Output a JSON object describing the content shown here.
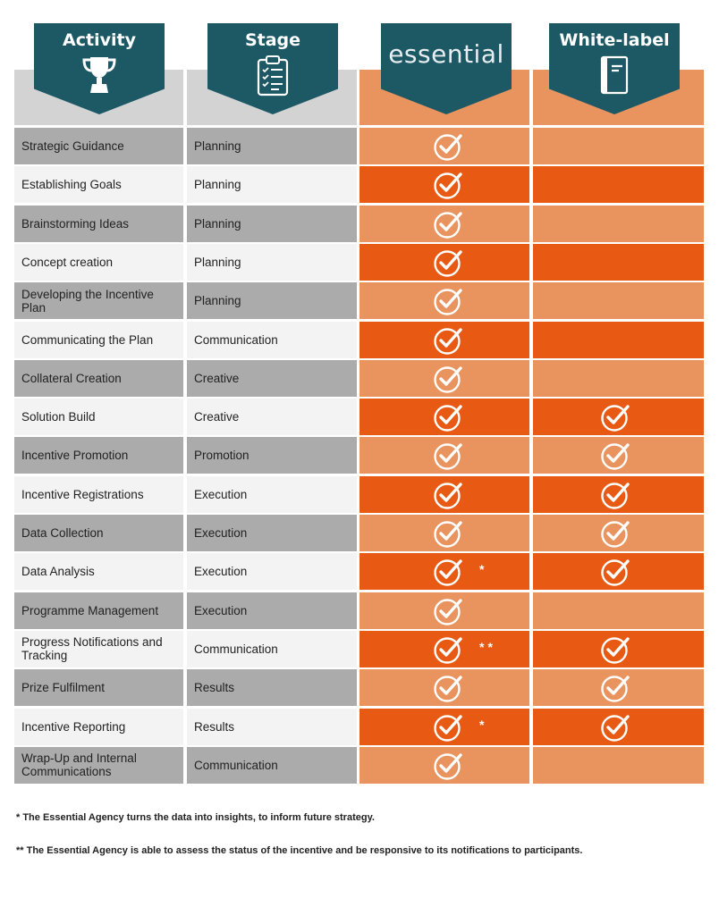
{
  "headers": {
    "activity": "Activity",
    "stage": "Stage",
    "essential": "essential",
    "white_label": "White-label"
  },
  "colors": {
    "banner": "#1d5865",
    "orange_dark": "#e85a14",
    "orange_light": "#e9935f",
    "grey_dark": "#ababab",
    "grey_light": "#f3f3f3"
  },
  "icons": {
    "activity": "trophy-icon",
    "stage": "clipboard-checklist-icon",
    "white_label": "notebook-icon",
    "check": "check-circle-icon"
  },
  "rows": [
    {
      "activity": "Strategic Guidance",
      "stage": "Planning",
      "essential": true,
      "essential_note": "",
      "white_label": false
    },
    {
      "activity": "Establishing Goals",
      "stage": "Planning",
      "essential": true,
      "essential_note": "",
      "white_label": false
    },
    {
      "activity": "Brainstorming Ideas",
      "stage": "Planning",
      "essential": true,
      "essential_note": "",
      "white_label": false
    },
    {
      "activity": "Concept creation",
      "stage": "Planning",
      "essential": true,
      "essential_note": "",
      "white_label": false
    },
    {
      "activity": "Developing the Incentive Plan",
      "stage": "Planning",
      "essential": true,
      "essential_note": "",
      "white_label": false
    },
    {
      "activity": "Communicating the Plan",
      "stage": "Communication",
      "essential": true,
      "essential_note": "",
      "white_label": false
    },
    {
      "activity": "Collateral Creation",
      "stage": "Creative",
      "essential": true,
      "essential_note": "",
      "white_label": false
    },
    {
      "activity": "Solution Build",
      "stage": "Creative",
      "essential": true,
      "essential_note": "",
      "white_label": true
    },
    {
      "activity": "Incentive Promotion",
      "stage": "Promotion",
      "essential": true,
      "essential_note": "",
      "white_label": true
    },
    {
      "activity": "Incentive Registrations",
      "stage": "Execution",
      "essential": true,
      "essential_note": "",
      "white_label": true
    },
    {
      "activity": "Data Collection",
      "stage": "Execution",
      "essential": true,
      "essential_note": "",
      "white_label": true
    },
    {
      "activity": "Data Analysis",
      "stage": "Execution",
      "essential": true,
      "essential_note": "*",
      "white_label": true
    },
    {
      "activity": "Programme Management",
      "stage": "Execution",
      "essential": true,
      "essential_note": "",
      "white_label": false
    },
    {
      "activity": "Progress Notifications and Tracking",
      "stage": "Communication",
      "essential": true,
      "essential_note": "**",
      "white_label": true
    },
    {
      "activity": "Prize Fulfilment",
      "stage": "Results",
      "essential": true,
      "essential_note": "",
      "white_label": true
    },
    {
      "activity": "Incentive Reporting",
      "stage": "Results",
      "essential": true,
      "essential_note": "*",
      "white_label": true
    },
    {
      "activity": "Wrap-Up and Internal Communications",
      "stage": "Communication",
      "essential": true,
      "essential_note": "",
      "white_label": false
    }
  ],
  "footnotes": [
    "* The Essential Agency turns the data into insights, to inform future strategy.",
    "** The Essential Agency is able to assess the status of the incentive and be responsive to its notifications to participants."
  ]
}
